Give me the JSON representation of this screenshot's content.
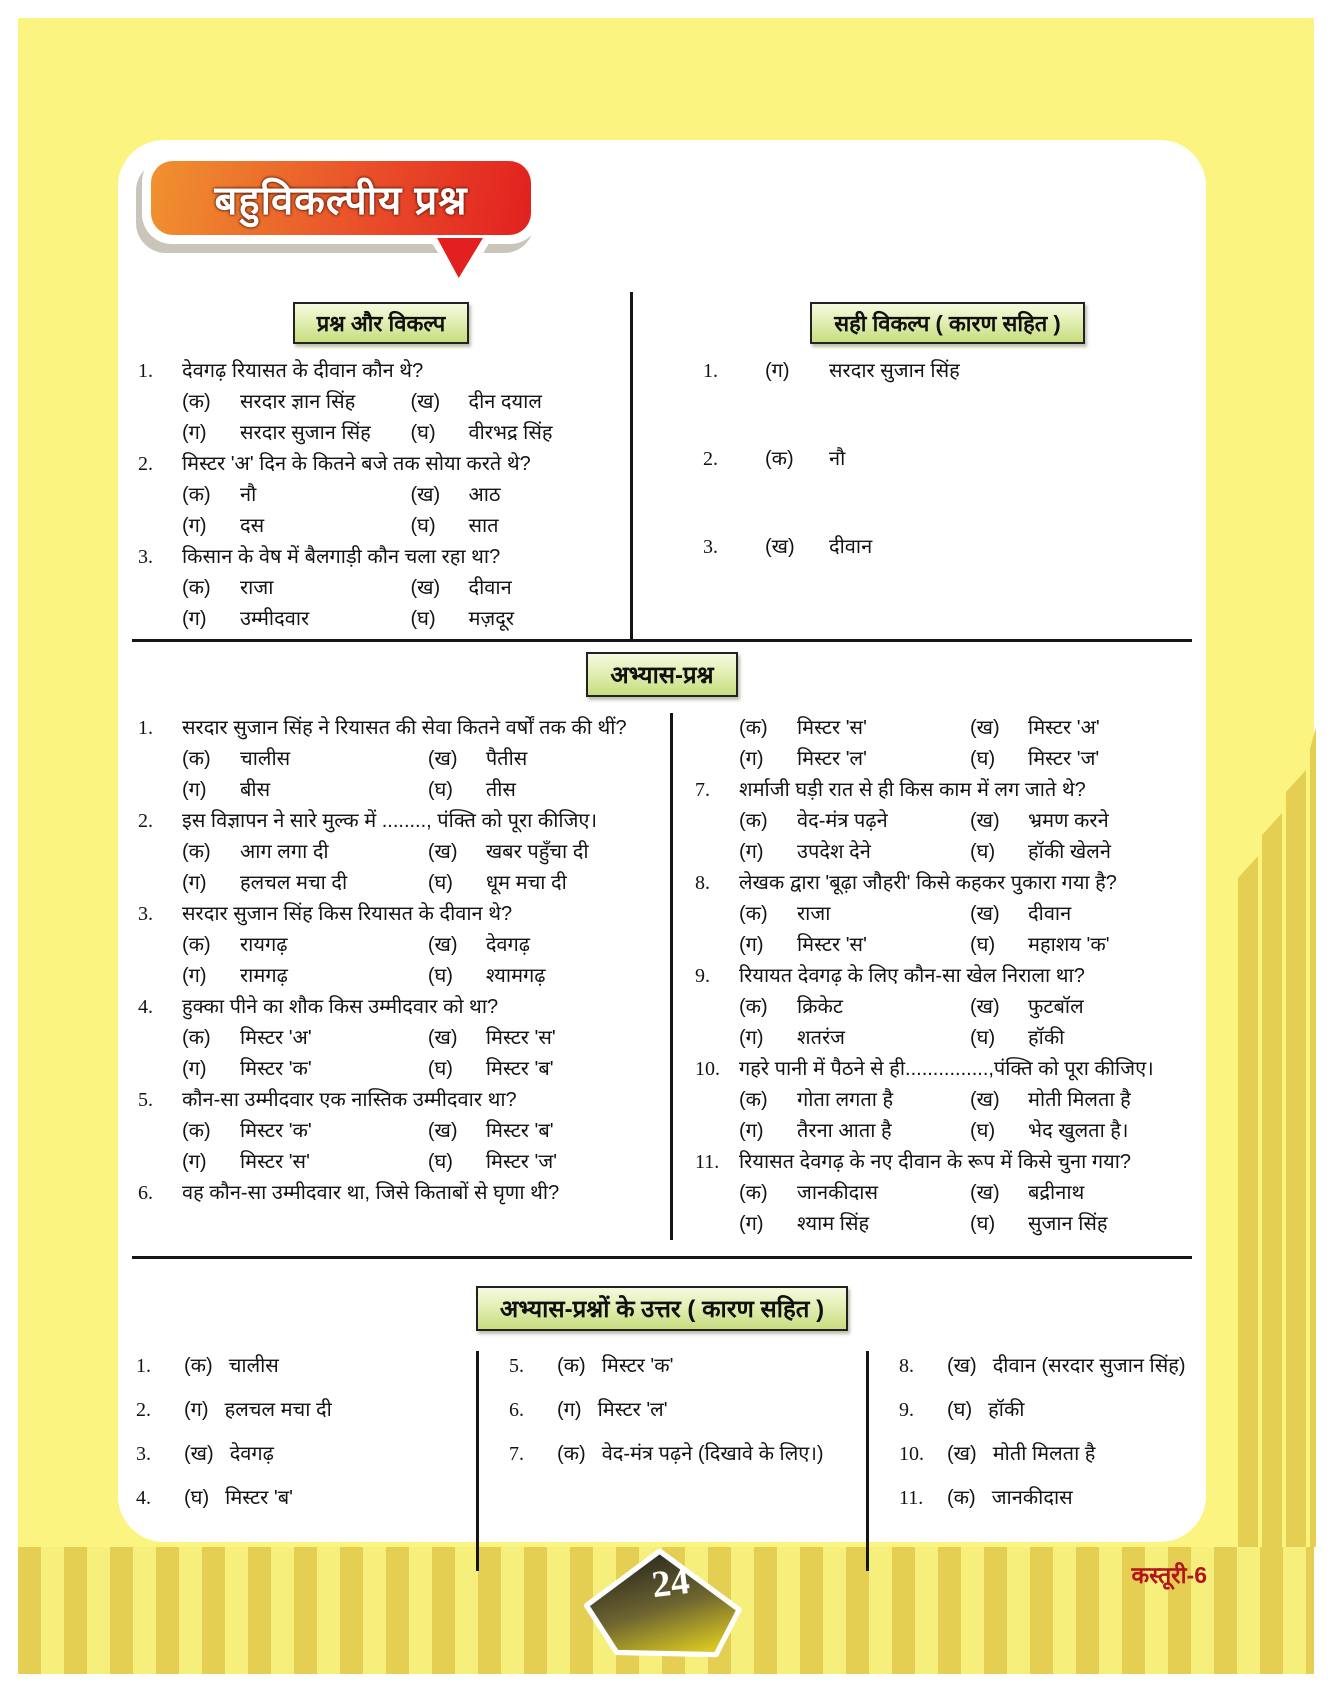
{
  "page": {
    "title": "बहुविकल्पीय प्रश्न",
    "page_number": "24",
    "book_label": "कस्तूरी-6"
  },
  "option_labels": [
    "(क)",
    "(ख)",
    "(ग)",
    "(घ)"
  ],
  "section1": {
    "left": {
      "header": "प्रश्न और विकल्प",
      "questions": [
        {
          "num": "1.",
          "text": "देवगढ़ रियासत के दीवान कौन थे?",
          "options": [
            "सरदार ज्ञान सिंह",
            "दीन दयाल",
            "सरदार सुजान सिंह",
            "वीरभद्र सिंह"
          ]
        },
        {
          "num": "2.",
          "text": "मिस्टर 'अ' दिन के कितने बजे तक सोया करते थे?",
          "options": [
            "नौ",
            "आठ",
            "दस",
            "सात"
          ]
        },
        {
          "num": "3.",
          "text": "किसान के वेष में बैलगाड़ी कौन चला रहा था?",
          "options": [
            "राजा",
            "दीवान",
            "उम्मीदवार",
            "मज़दूर"
          ]
        }
      ]
    },
    "right": {
      "header": "सही विकल्प ( कारण सहित )",
      "answers": [
        {
          "num": "1.",
          "label": "(ग)",
          "text": "सरदार सुजान सिंह"
        },
        {
          "num": "2.",
          "label": "(क)",
          "text": "नौ"
        },
        {
          "num": "3.",
          "label": "(ख)",
          "text": "दीवान"
        }
      ]
    }
  },
  "section2": {
    "header": "अभ्यास-प्रश्न",
    "left_questions": [
      {
        "num": "1.",
        "text": "सरदार सुजान सिंह ने रियासत की सेवा कितने वर्षों तक की थीं?",
        "options": [
          "चालीस",
          "पैतीस",
          "बीस",
          "तीस"
        ]
      },
      {
        "num": "2.",
        "text": "इस विज्ञापन ने सारे मुल्क में ........, पंक्ति को पूरा कीजिए।",
        "options": [
          "आग लगा दी",
          "खबर पहुँचा दी",
          "हलचल मचा दी",
          "धूम मचा दी"
        ]
      },
      {
        "num": "3.",
        "text": "सरदार सुजान सिंह किस रियासत के दीवान थे?",
        "options": [
          "रायगढ़",
          "देवगढ़",
          "रामगढ़",
          "श्यामगढ़"
        ]
      },
      {
        "num": "4.",
        "text": "हुक्का पीने का शौक किस उम्मीदवार को था?",
        "options": [
          "मिस्टर 'अ'",
          "मिस्टर 'स'",
          "मिस्टर 'क'",
          "मिस्टर 'ब'"
        ]
      },
      {
        "num": "5.",
        "text": "कौन-सा उम्मीदवार एक नास्तिक उम्मीदवार था?",
        "options": [
          "मिस्टर 'क'",
          "मिस्टर 'ब'",
          "मिस्टर 'स'",
          "मिस्टर 'ज'"
        ]
      },
      {
        "num": "6.",
        "text": "वह कौन-सा उम्मीदवार था, जिसे किताबों से घृणा थी?"
      }
    ],
    "right_questions": [
      {
        "options": [
          "मिस्टर 'स'",
          "मिस्टर 'अ'",
          "मिस्टर 'ल'",
          "मिस्टर 'ज'"
        ]
      },
      {
        "num": "7.",
        "text": "शर्माजी घड़ी रात से ही किस काम में लग जाते थे?",
        "options": [
          "वेद-मंत्र पढ़ने",
          "भ्रमण करने",
          "उपदेश देने",
          "हॉकी खेलने"
        ]
      },
      {
        "num": "8.",
        "text": "लेखक द्वारा 'बूढ़ा जौहरी' किसे कहकर पुकारा गया है?",
        "options": [
          "राजा",
          "दीवान",
          "मिस्टर 'स'",
          "महाशय 'क'"
        ]
      },
      {
        "num": "9.",
        "text": "रियायत देवगढ़ के लिए कौन-सा खेल निराला था?",
        "options": [
          "क्रिकेट",
          "फुटबॉल",
          "शतरंज",
          "हॉकी"
        ]
      },
      {
        "num": "10.",
        "text": "गहरे पानी में पैठने से ही...............,पंक्ति को पूरा कीजिए।",
        "options": [
          "गोता लगता है",
          "मोती मिलता है",
          "तैरना आता है",
          "भेद खुलता है।"
        ]
      },
      {
        "num": "11.",
        "text": "रियासत देवगढ़ के नए दीवान के रूप में किसे चुना गया?",
        "options": [
          "जानकीदास",
          "बद्रीनाथ",
          "श्याम सिंह",
          "सुजान सिंह"
        ]
      }
    ]
  },
  "section3": {
    "header": "अभ्यास-प्रश्नों के उत्तर ( कारण सहित )",
    "columns": [
      [
        {
          "num": "1.",
          "label": "(क)",
          "text": "चालीस"
        },
        {
          "num": "2.",
          "label": "(ग)",
          "text": "हलचल मचा दी"
        },
        {
          "num": "3.",
          "label": "(ख)",
          "text": "देवगढ़"
        },
        {
          "num": "4.",
          "label": "(घ)",
          "text": "मिस्टर 'ब'"
        }
      ],
      [
        {
          "num": "5.",
          "label": "(क)",
          "text": "मिस्टर 'क'"
        },
        {
          "num": "6.",
          "label": "(ग)",
          "text": "मिस्टर 'ल'"
        },
        {
          "num": "7.",
          "label": "(क)",
          "text": "वेद-मंत्र पढ़ने (दिखावे के लिए।)"
        }
      ],
      [
        {
          "num": "8.",
          "label": "(ख)",
          "text": "दीवान (सरदार सुजान सिंह)"
        },
        {
          "num": "9.",
          "label": "(घ)",
          "text": "हॉकी"
        },
        {
          "num": "10.",
          "label": "(ख)",
          "text": "मोती मिलता है"
        },
        {
          "num": "11.",
          "label": "(क)",
          "text": "जानकीदास"
        }
      ]
    ]
  }
}
